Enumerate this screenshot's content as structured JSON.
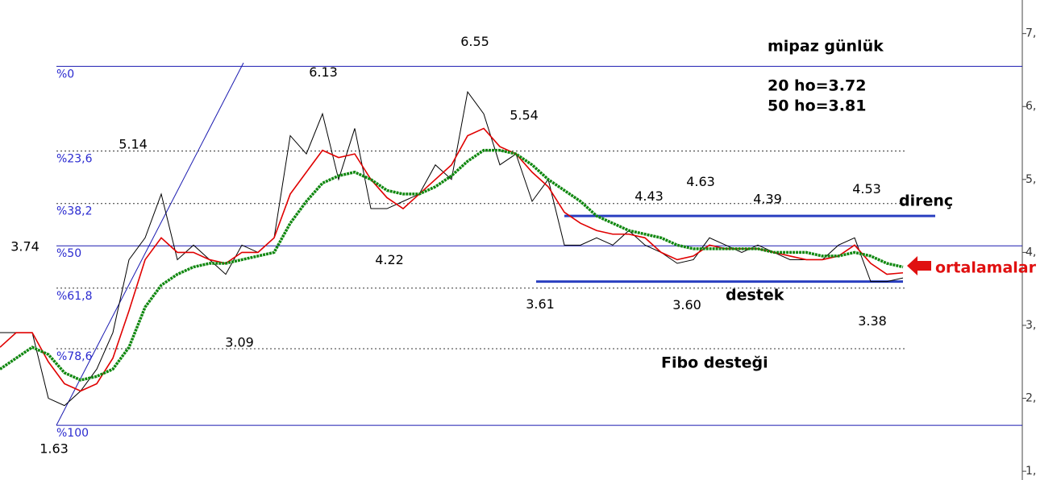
{
  "chart_data": {
    "type": "line",
    "title": "mipaz günlük",
    "notes": [
      "20 ho=3.72",
      "50 ho=3.81"
    ],
    "x": [
      0,
      2,
      4,
      6,
      8,
      10,
      12,
      14,
      16,
      18,
      20,
      22,
      24,
      26,
      28,
      30,
      32,
      34,
      36,
      38,
      40,
      42,
      44,
      46,
      48,
      50,
      52,
      54,
      56,
      58,
      60,
      62,
      64,
      66,
      68,
      70,
      72,
      74,
      76,
      78,
      80,
      82,
      84,
      86,
      88,
      90,
      92,
      94,
      96,
      98,
      100,
      102,
      104,
      106,
      108,
      110,
      112
    ],
    "xlim": [
      0,
      126.8
    ],
    "ylim": [
      0.88,
      7.46
    ],
    "yticks": [
      {
        "value": 1,
        "label": "1,"
      },
      {
        "value": 2,
        "label": "2,"
      },
      {
        "value": 3,
        "label": "3,"
      },
      {
        "value": 4,
        "label": "4,"
      },
      {
        "value": 5,
        "label": "5,"
      },
      {
        "value": 6,
        "label": "6,"
      },
      {
        "value": 7,
        "label": "7,"
      }
    ],
    "series": [
      {
        "color": "#000000",
        "values": [
          2.9,
          2.9,
          2.9,
          2.0,
          1.9,
          2.1,
          2.4,
          2.9,
          3.9,
          4.2,
          4.8,
          3.9,
          4.1,
          3.9,
          3.7,
          4.1,
          4.0,
          4.2,
          5.6,
          5.35,
          5.9,
          5.0,
          5.7,
          4.6,
          4.6,
          4.7,
          4.8,
          5.2,
          5.0,
          6.2,
          5.9,
          5.2,
          5.35,
          4.7,
          5.0,
          4.1,
          4.1,
          4.2,
          4.1,
          4.3,
          4.1,
          4.0,
          3.85,
          3.9,
          4.2,
          4.1,
          4.0,
          4.1,
          4.0,
          3.9,
          3.9,
          3.9,
          4.1,
          4.2,
          3.6,
          3.6,
          3.65
        ]
      },
      {
        "color": "#e00000",
        "values": [
          2.7,
          2.9,
          2.9,
          2.5,
          2.2,
          2.1,
          2.2,
          2.55,
          3.2,
          3.9,
          4.2,
          4.0,
          4.0,
          3.9,
          3.85,
          4.0,
          4.0,
          4.2,
          4.8,
          5.1,
          5.4,
          5.3,
          5.35,
          5.0,
          4.75,
          4.6,
          4.8,
          5.0,
          5.2,
          5.6,
          5.7,
          5.45,
          5.35,
          5.1,
          4.9,
          4.55,
          4.4,
          4.3,
          4.25,
          4.25,
          4.2,
          4.0,
          3.9,
          3.95,
          4.1,
          4.05,
          4.05,
          4.05,
          4.0,
          3.95,
          3.9,
          3.9,
          3.95,
          4.1,
          3.85,
          3.7,
          3.72
        ]
      },
      {
        "color": "#118811",
        "values": [
          2.4,
          2.55,
          2.7,
          2.6,
          2.35,
          2.25,
          2.3,
          2.4,
          2.7,
          3.25,
          3.55,
          3.7,
          3.8,
          3.85,
          3.85,
          3.9,
          3.95,
          4.0,
          4.4,
          4.7,
          4.95,
          5.05,
          5.1,
          5.0,
          4.85,
          4.8,
          4.8,
          4.9,
          5.05,
          5.25,
          5.4,
          5.4,
          5.35,
          5.2,
          5.0,
          4.85,
          4.7,
          4.5,
          4.4,
          4.3,
          4.25,
          4.2,
          4.1,
          4.05,
          4.05,
          4.05,
          4.05,
          4.05,
          4.0,
          4.0,
          4.0,
          3.95,
          3.95,
          4.0,
          3.95,
          3.85,
          3.8
        ]
      }
    ],
    "fib_levels": [
      {
        "label": "%0",
        "value": 6.55,
        "style": "solid"
      },
      {
        "label": "%23,6",
        "value": 5.39,
        "style": "dotted"
      },
      {
        "label": "%38,2",
        "value": 4.67,
        "style": "dotted"
      },
      {
        "label": "%50",
        "value": 4.09,
        "style": "solid"
      },
      {
        "label": "%61,8",
        "value": 3.51,
        "style": "dotted"
      },
      {
        "label": "%78,6",
        "value": 2.68,
        "style": "dotted"
      },
      {
        "label": "%100",
        "value": 1.63,
        "style": "solid"
      }
    ],
    "trend_lines": [
      {
        "label": "direnç",
        "value": 4.5,
        "x": [
          70,
          116
        ]
      },
      {
        "label": "destek",
        "value": 3.6,
        "x": [
          66.5,
          112
        ]
      }
    ],
    "annotations": [
      {
        "label": "6.55",
        "value": 6.55,
        "x": 58.9,
        "pos": "above"
      },
      {
        "label": "6.13",
        "value": 6.13,
        "x": 40.1,
        "pos": "above"
      },
      {
        "label": "5.54",
        "value": 5.54,
        "x": 65,
        "pos": "above"
      },
      {
        "label": "5.14",
        "value": 5.14,
        "x": 16.5,
        "pos": "above"
      },
      {
        "label": "3.74",
        "value": 3.74,
        "x": 3.1,
        "pos": "above"
      },
      {
        "label": "1.63",
        "value": 1.63,
        "x": 6.7,
        "pos": "below"
      },
      {
        "label": "3.09",
        "value": 3.09,
        "x": 29.7,
        "pos": "below"
      },
      {
        "label": "4.22",
        "value": 4.22,
        "x": 48.3,
        "pos": "below"
      },
      {
        "label": "3.61",
        "value": 3.61,
        "x": 67,
        "pos": "below"
      },
      {
        "label": "3.60",
        "value": 3.6,
        "x": 85.2,
        "pos": "below"
      },
      {
        "label": "3.38",
        "value": 3.38,
        "x": 108.2,
        "pos": "below"
      },
      {
        "label": "4.43",
        "value": 4.43,
        "x": 80.5,
        "pos": "above"
      },
      {
        "label": "4.63",
        "value": 4.63,
        "x": 86.9,
        "pos": "above"
      },
      {
        "label": "4.39",
        "value": 4.39,
        "x": 95.2,
        "pos": "above"
      },
      {
        "label": "4.53",
        "value": 4.53,
        "x": 107.5,
        "pos": "above"
      }
    ],
    "callouts": {
      "fibo": "Fibo desteği",
      "averages": "ortalamalar"
    }
  }
}
